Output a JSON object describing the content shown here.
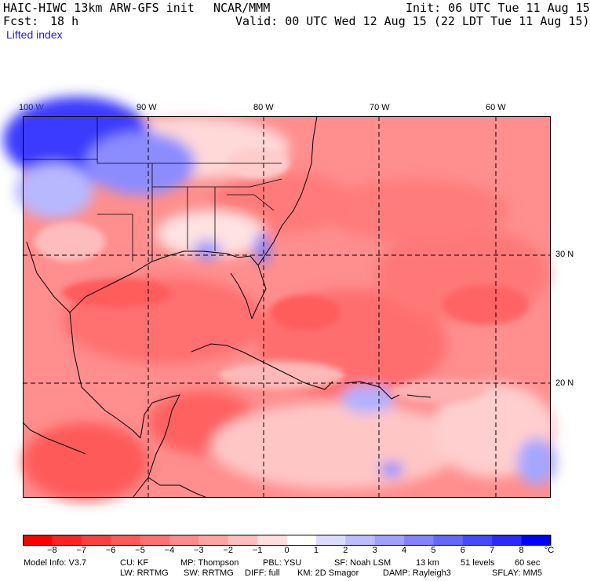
{
  "header": {
    "model": "HAIC-HIWC 13km ARW-GFS init",
    "org": "NCAR/MMM",
    "init": "Init: 06 UTC Tue 11 Aug 15",
    "fcst_label": "Fcst:",
    "fcst_value": "18 h",
    "valid": "Valid: 00 UTC Wed 12 Aug 15 (22 LDT Tue 11 Aug 15)",
    "field": "Lifted index"
  },
  "map": {
    "lon_labels": [
      "100 W",
      "90 W",
      "80 W",
      "70 W",
      "60 W"
    ],
    "lat_labels": [
      "30 N",
      "20 N"
    ]
  },
  "colorbar": {
    "ticks": [
      "−8",
      "−7",
      "−6",
      "−5",
      "−4",
      "−3",
      "−2",
      "−1",
      "0",
      "1",
      "2",
      "3",
      "4",
      "5",
      "6",
      "7",
      "8"
    ],
    "unit": "°C",
    "colors": [
      "#ff0000",
      "#ff2222",
      "#ff3f3f",
      "#ff5858",
      "#ff7070",
      "#ff8a8a",
      "#ffa3a3",
      "#ffbebe",
      "#ffdede",
      "#ffffff",
      "#dcdcff",
      "#bcbcff",
      "#a0a0ff",
      "#8282ff",
      "#6666ff",
      "#4848ff",
      "#2a2aff",
      "#0000ff"
    ]
  },
  "model_info": {
    "line1": [
      "Model Info: V3.7",
      "CU: KF",
      "MP: Thompson",
      "PBL: YSU",
      "SF: Noah LSM",
      "13 km",
      "51 levels",
      "60 sec"
    ],
    "line2": [
      "LW: RRTMG",
      "SW: RRTMG",
      "DIFF: full",
      "KM: 2D Smagor",
      "DAMP: Rayleigh3",
      "SFLAY: MM5"
    ]
  }
}
